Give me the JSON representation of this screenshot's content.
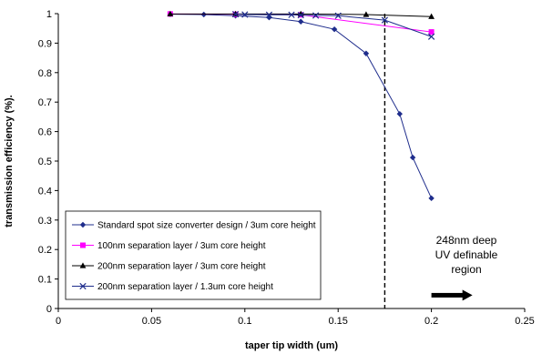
{
  "chart_data": {
    "type": "line",
    "xlabel": "taper tip width (um)",
    "ylabel": "transmission efficiency (%).",
    "xlim": [
      0,
      0.25
    ],
    "ylim": [
      0,
      1
    ],
    "x_ticks": [
      0,
      0.05,
      0.1,
      0.15,
      0.2,
      0.25
    ],
    "x_tick_labels": [
      "0",
      "0.05",
      "0.1",
      "0.15",
      "0.2",
      "0.25"
    ],
    "y_ticks": [
      0,
      0.1,
      0.2,
      0.3,
      0.4,
      0.5,
      0.6,
      0.7,
      0.8,
      0.9,
      1
    ],
    "y_tick_labels": [
      "0",
      "0.1",
      "0.2",
      "0.3",
      "0.4",
      "0.5",
      "0.6",
      "0.7",
      "0.8",
      "0.9",
      "1"
    ],
    "grid": false,
    "legend_position": "bottom-left",
    "series": [
      {
        "name": "Standard spot size converter design / 3um core height",
        "color": "#1f2d8c",
        "marker": "diamond",
        "x": [
          0.06,
          0.078,
          0.095,
          0.113,
          0.13,
          0.148,
          0.165,
          0.183,
          0.19,
          0.2
        ],
        "y": [
          0.998,
          0.997,
          0.993,
          0.987,
          0.973,
          0.947,
          0.865,
          0.66,
          0.512,
          0.374
        ]
      },
      {
        "name": "100nm separation layer / 3um core height",
        "color": "#ff00ff",
        "marker": "square",
        "x": [
          0.06,
          0.095,
          0.13,
          0.2
        ],
        "y": [
          0.999,
          0.998,
          0.996,
          0.938
        ]
      },
      {
        "name": "200nm separation layer / 3um core height",
        "color": "#000000",
        "marker": "triangle",
        "x": [
          0.06,
          0.095,
          0.13,
          0.165,
          0.2
        ],
        "y": [
          0.999,
          0.999,
          0.999,
          0.997,
          0.99
        ]
      },
      {
        "name": "200nm separation layer / 1.3um core height",
        "color": "#1f2d8c",
        "marker": "x",
        "x": [
          0.095,
          0.1,
          0.113,
          0.125,
          0.13,
          0.138,
          0.15,
          0.175,
          0.2
        ],
        "y": [
          0.998,
          0.997,
          0.996,
          0.996,
          0.995,
          0.994,
          0.993,
          0.978,
          0.922
        ]
      }
    ],
    "threshold_line": {
      "x": 0.175,
      "style": "dashed"
    },
    "annotation": {
      "lines": [
        "248nm deep",
        "UV definable",
        "region"
      ],
      "arrow_from_x": 0.2,
      "arrow_to_x": 0.222,
      "arrow_y": 0.045
    }
  }
}
